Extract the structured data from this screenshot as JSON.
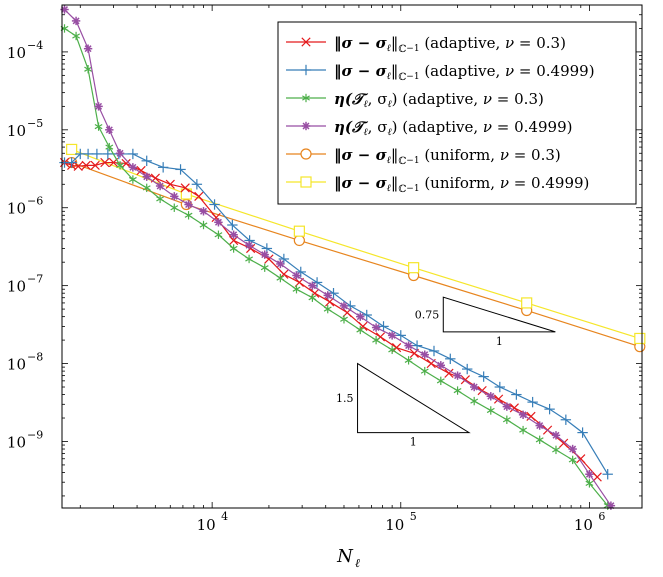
{
  "chart_data": {
    "type": "line",
    "xscale": "log",
    "yscale": "log",
    "xlabel": "N",
    "xlabel_sub": "ℓ",
    "xlim": [
      1600,
      1900000
    ],
    "ylim": [
      1.4e-10,
      0.0004
    ],
    "xticks": [
      {
        "value": 10000,
        "base": "10",
        "exp": "4"
      },
      {
        "value": 100000,
        "base": "10",
        "exp": "5"
      },
      {
        "value": 1000000,
        "base": "10",
        "exp": "6"
      }
    ],
    "yticks": [
      {
        "value": 1e-09,
        "base": "10",
        "exp": "−9"
      },
      {
        "value": 1e-08,
        "base": "10",
        "exp": "−8"
      },
      {
        "value": 1e-07,
        "base": "10",
        "exp": "−7"
      },
      {
        "value": 1e-06,
        "base": "10",
        "exp": "−6"
      },
      {
        "value": 1e-05,
        "base": "10",
        "exp": "−5"
      },
      {
        "value": 0.0001,
        "base": "10",
        "exp": "−4"
      }
    ],
    "legend_position": "top-right",
    "series": [
      {
        "name": "‖σ − σℓ‖ℂ⁻¹ (adaptive, ν = 0.3)",
        "color": "#e41a1c",
        "marker": "x",
        "x": [
          1650,
          1800,
          1950,
          2150,
          2400,
          2700,
          3000,
          3500,
          4200,
          5000,
          6000,
          7200,
          8500,
          10500,
          13000,
          16000,
          20000,
          24000,
          29000,
          35000,
          42000,
          52000,
          63000,
          78000,
          95000,
          118000,
          145000,
          180000,
          220000,
          270000,
          330000,
          400000,
          490000,
          600000,
          730000,
          900000,
          1100000
        ],
        "y": [
          3.8e-06,
          3.5e-06,
          3.4e-06,
          3.5e-06,
          3.5e-06,
          3.8e-06,
          3.8e-06,
          3.7e-06,
          3e-06,
          2.4e-06,
          2e-06,
          1.8e-06,
          1.4e-06,
          7.5e-07,
          3.8e-07,
          3e-07,
          2.2e-07,
          1.4e-07,
          1.1e-07,
          8e-08,
          6.2e-08,
          4.5e-08,
          3e-08,
          2.2e-08,
          1.6e-08,
          1.35e-08,
          1e-08,
          7.5e-09,
          6.2e-09,
          4.5e-09,
          3.5e-09,
          2.7e-09,
          2.1e-09,
          1.4e-09,
          9.5e-10,
          6e-10,
          3.5e-10
        ]
      },
      {
        "name": "‖σ − σℓ‖ℂ⁻¹ (adaptive, ν = 0.4999)",
        "color": "#377eb8",
        "marker": "+",
        "x": [
          1650,
          1800,
          2000,
          2200,
          2450,
          2800,
          3200,
          3800,
          4500,
          5500,
          6800,
          8300,
          10300,
          12800,
          15800,
          19500,
          24000,
          29500,
          36000,
          44000,
          54000,
          66000,
          81000,
          100000,
          122000,
          150000,
          183000,
          225000,
          275000,
          335000,
          410000,
          500000,
          615000,
          750000,
          920000,
          1250000
        ],
        "y": [
          3.8e-06,
          3.8e-06,
          4.9e-06,
          4.9e-06,
          4.9e-06,
          4.9e-06,
          4.9e-06,
          4.9e-06,
          4e-06,
          3.3e-06,
          3.1e-06,
          2e-06,
          1.1e-06,
          6e-07,
          3.8e-07,
          3e-07,
          2.2e-07,
          1.5e-07,
          1.1e-07,
          8e-08,
          5.5e-08,
          4.2e-08,
          3e-08,
          2.3e-08,
          1.7e-08,
          1.45e-08,
          1.15e-08,
          8.5e-09,
          6.8e-09,
          5e-09,
          4e-09,
          3.2e-09,
          2.6e-09,
          1.9e-09,
          1.3e-09,
          3.8e-10
        ]
      },
      {
        "name": "η(𝒯ℓ, σℓ) (adaptive, ν = 0.3)",
        "color": "#4daf4a",
        "marker": "asterisk",
        "x": [
          1650,
          1900,
          2200,
          2500,
          2850,
          3250,
          3800,
          4500,
          5300,
          6300,
          7500,
          9000,
          10800,
          13000,
          15700,
          19000,
          23000,
          28000,
          34000,
          41000,
          50000,
          61000,
          74000,
          90000,
          110000,
          134000,
          163000,
          200000,
          245000,
          300000,
          365000,
          445000,
          545000,
          665000,
          815000,
          1000000,
          1250000
        ],
        "y": [
          0.0002,
          0.00016,
          6e-05,
          1.1e-05,
          6e-06,
          3.5e-06,
          2.3e-06,
          1.8e-06,
          1.3e-06,
          1e-06,
          8e-07,
          6e-07,
          4.5e-07,
          3e-07,
          2.2e-07,
          1.7e-07,
          1.25e-07,
          9e-08,
          7e-08,
          5e-08,
          3.7e-08,
          2.7e-08,
          2e-08,
          1.5e-08,
          1.1e-08,
          8e-09,
          6e-09,
          4.5e-09,
          3.3e-09,
          2.5e-09,
          1.9e-09,
          1.4e-09,
          1.05e-09,
          7.8e-10,
          5.8e-10,
          2.9e-10,
          1.5e-10
        ]
      },
      {
        "name": "η(𝒯ℓ, σℓ) (adaptive, ν = 0.4999)",
        "color": "#984ea3",
        "marker": "star",
        "x": [
          1650,
          1900,
          2200,
          2500,
          2850,
          3250,
          3800,
          4500,
          5300,
          6300,
          7500,
          9000,
          10800,
          13000,
          15700,
          19000,
          23000,
          28000,
          34000,
          41000,
          50000,
          61000,
          74000,
          90000,
          110000,
          134000,
          163000,
          200000,
          245000,
          300000,
          365000,
          445000,
          545000,
          665000,
          815000,
          1000000,
          1300000
        ],
        "y": [
          0.00035,
          0.00025,
          0.00011,
          2e-05,
          1e-05,
          5e-06,
          3.3e-06,
          2.5e-06,
          1.9e-06,
          1.4e-06,
          1.1e-06,
          9e-07,
          6.5e-07,
          4.5e-07,
          3.3e-07,
          2.5e-07,
          1.9e-07,
          1.35e-07,
          1e-07,
          7.5e-08,
          5.5e-08,
          4e-08,
          2.9e-08,
          2.3e-08,
          1.7e-08,
          1.3e-08,
          9.5e-09,
          7e-09,
          5e-09,
          3.8e-09,
          2.8e-09,
          2.2e-09,
          1.6e-09,
          1.2e-09,
          8e-10,
          3.8e-10,
          1.5e-10
        ]
      },
      {
        "name": "‖σ − σℓ‖ℂ⁻¹ (uniform, ν = 0.3)",
        "color": "#e7851f",
        "marker": "circle",
        "x": [
          1800,
          7300,
          29000,
          117000,
          465000,
          1850000
        ],
        "y": [
          3.8e-06,
          1.1e-06,
          3.8e-07,
          1.35e-07,
          4.8e-08,
          1.65e-08
        ]
      },
      {
        "name": "‖σ − σℓ‖ℂ⁻¹ (uniform, ν = 0.4999)",
        "color": "#f5e62a",
        "marker": "square",
        "x": [
          1800,
          7300,
          29000,
          117000,
          465000,
          1850000
        ],
        "y": [
          5.6e-06,
          1.5e-06,
          5e-07,
          1.7e-07,
          6e-08,
          2.1e-08
        ]
      }
    ],
    "slope_triangles": [
      {
        "label_rise": "0.75",
        "label_run": "1",
        "x0": 168000,
        "x1": 660000,
        "y_base": 2.55e-08,
        "slope": 0.75
      },
      {
        "label_rise": "1.5",
        "label_run": "1",
        "x0": 59000,
        "x1": 230000,
        "y_base": 1.3e-09,
        "slope": 1.5
      }
    ],
    "legend_parts": [
      {
        "lhs": "‖σ − σ",
        "sub": "ℓ",
        "mid": "‖",
        "norm_sub": "ℂ",
        "norm_sup": "−1",
        "rest": " (adaptive, ",
        "nu": "ν",
        "eq": " = 0.3)"
      },
      {
        "lhs": "‖σ − σ",
        "sub": "ℓ",
        "mid": "‖",
        "norm_sub": "ℂ",
        "norm_sup": "−1",
        "rest": " (adaptive, ",
        "nu": "ν",
        "eq": " = 0.4999)"
      },
      {
        "lhs": "η(𝒯",
        "sub": "ℓ",
        "mid": ", σ",
        "norm_sub": "ℓ",
        "norm_sup": "",
        "rest": ") (adaptive, ",
        "nu": "ν",
        "eq": " = 0.3)"
      },
      {
        "lhs": "η(𝒯",
        "sub": "ℓ",
        "mid": ", σ",
        "norm_sub": "ℓ",
        "norm_sup": "",
        "rest": ") (adaptive, ",
        "nu": "ν",
        "eq": " = 0.4999)"
      },
      {
        "lhs": "‖σ − σ",
        "sub": "ℓ",
        "mid": "‖",
        "norm_sub": "ℂ",
        "norm_sup": "−1",
        "rest": " (uniform, ",
        "nu": "ν",
        "eq": " = 0.3)"
      },
      {
        "lhs": "‖σ − σ",
        "sub": "ℓ",
        "mid": "‖",
        "norm_sub": "ℂ",
        "norm_sup": "−1",
        "rest": " (uniform, ",
        "nu": "ν",
        "eq": " = 0.4999)"
      }
    ]
  }
}
